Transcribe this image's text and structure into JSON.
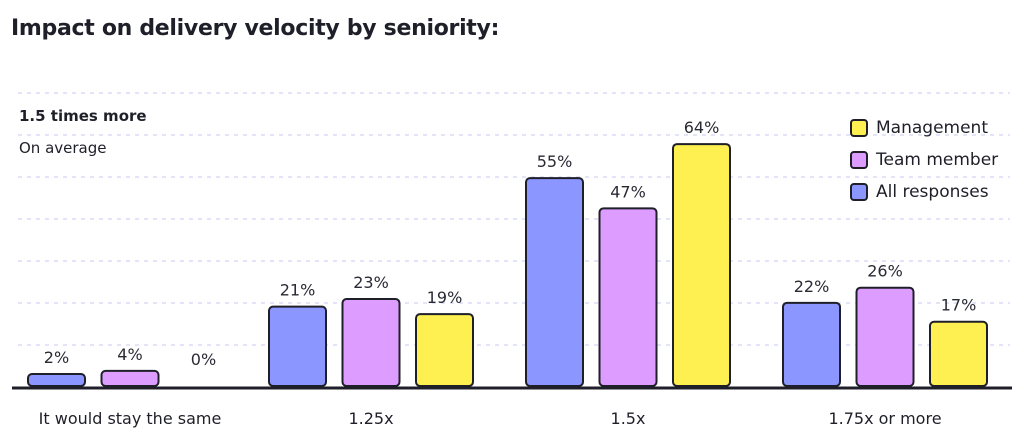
{
  "chart_data": {
    "type": "bar",
    "title": "Impact on delivery velocity by seniority:",
    "annotation": {
      "title": "1.5 times more",
      "subtitle": "On average"
    },
    "categories": [
      "It would stay the same",
      "1.25x",
      "1.5x",
      "1.75x or more"
    ],
    "series": [
      {
        "name": "All responses",
        "color": "#8c96ff",
        "values": [
          2,
          21,
          55,
          22
        ]
      },
      {
        "name": "Team member",
        "color": "#dd9cff",
        "values": [
          4,
          23,
          47,
          26
        ]
      },
      {
        "name": "Management",
        "color": "#fdf050",
        "values": [
          0,
          19,
          64,
          17
        ]
      }
    ],
    "legend_order": [
      "Management",
      "Team member",
      "All responses"
    ],
    "legend_position": "top-right",
    "value_suffix": "%",
    "ylim": [
      0,
      77
    ],
    "grid": true,
    "xlabel": "",
    "ylabel": ""
  }
}
